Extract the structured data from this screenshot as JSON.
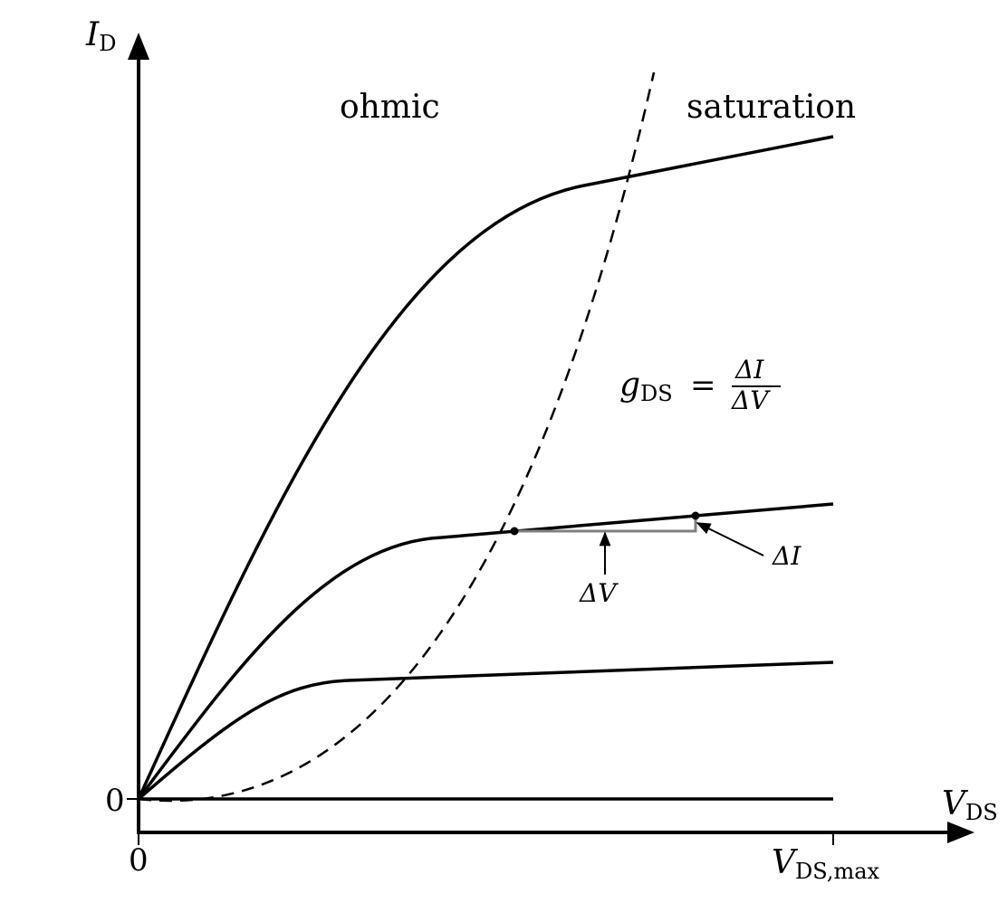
{
  "axes": {
    "y_label": "I",
    "y_label_sub": "D",
    "x_label": "V",
    "x_label_sub": "DS",
    "y_origin_tick": "0",
    "x_origin_tick": "0",
    "x_max_tick": "V",
    "x_max_tick_sub": "DS,max"
  },
  "regions": {
    "left": "ohmic",
    "right": "saturation"
  },
  "formula": {
    "lhs": "g",
    "lhs_sub": "DS",
    "equals": "=",
    "numerator": "ΔI",
    "denominator": "ΔV"
  },
  "annotations": {
    "delta_v": "ΔV",
    "delta_i": "ΔI"
  },
  "curves": [
    {
      "name": "zero-gate-curve",
      "saturation_level": 0
    },
    {
      "name": "low-gate-curve",
      "saturation_level": 1
    },
    {
      "name": "mid-gate-curve",
      "saturation_level": 2
    },
    {
      "name": "high-gate-curve",
      "saturation_level": 3
    }
  ],
  "colors": {
    "curve": "#000000",
    "slope_triangle": "#808080"
  }
}
